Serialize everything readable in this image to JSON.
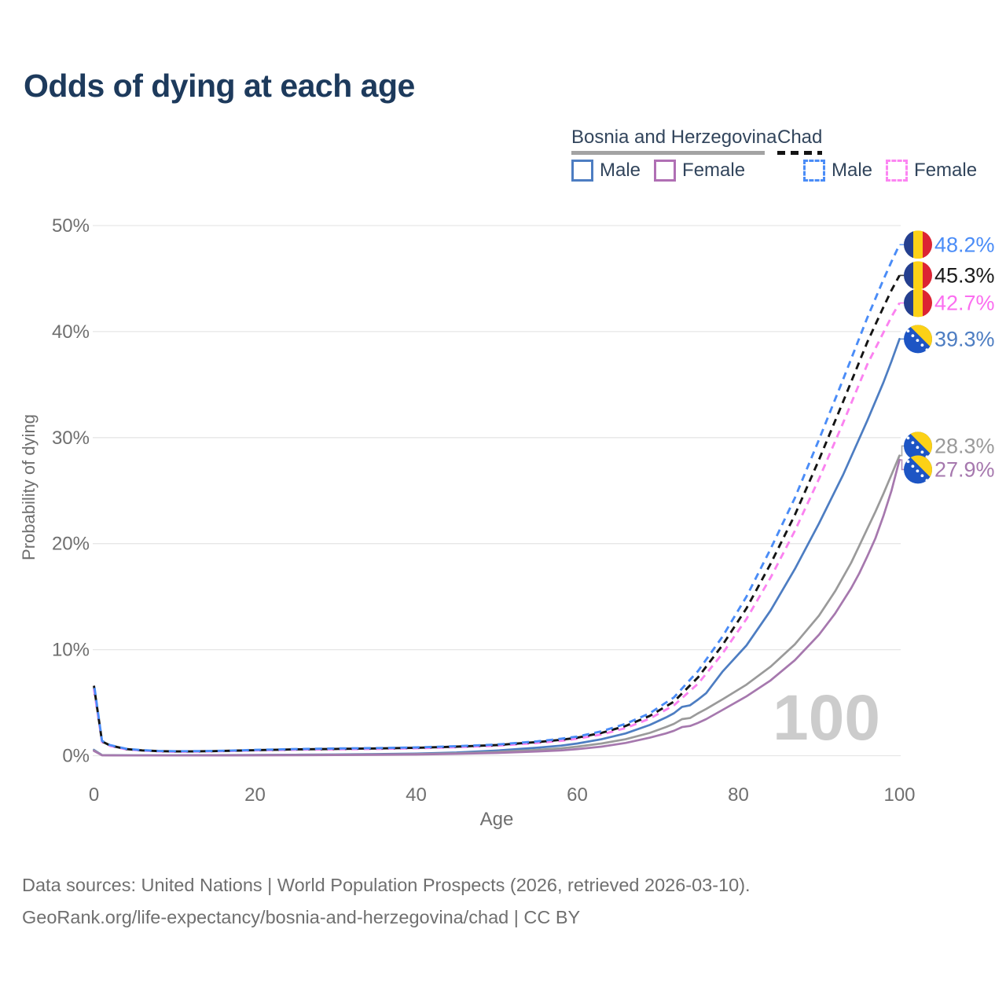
{
  "footer": {
    "line1": "Data sources: United Nations | World Population Prospects (2026, retrieved 2026-03-10).",
    "line2": "GeoRank.org/life-expectancy/bosnia-and-herzegovina/chad | CC BY"
  },
  "legend": {
    "groups": [
      {
        "id": "bosnia-and-herzegovina",
        "label": "Bosnia and Herzegovina",
        "line_style": "solid",
        "line_color": "#a3a3a3",
        "items": [
          {
            "label": "Male",
            "color": "#4d7dc2",
            "dashed": false
          },
          {
            "label": "Female",
            "color": "#b06fb4",
            "dashed": false
          }
        ]
      },
      {
        "id": "chad",
        "label": "Chad",
        "line_style": "dashed",
        "line_color": "#141414",
        "items": [
          {
            "label": "Male",
            "color": "#4a8cf7",
            "dashed": true
          },
          {
            "label": "Female",
            "color": "#fc85f2",
            "dashed": true
          }
        ]
      }
    ]
  },
  "chart_data": {
    "type": "line",
    "title": "Odds of dying at each age",
    "xlabel": "Age",
    "ylabel": "Probability of dying",
    "xlim": [
      0,
      100
    ],
    "ylim_percent": [
      0,
      50
    ],
    "x_ticks": [
      0,
      20,
      40,
      60,
      80,
      100
    ],
    "y_ticks": [
      {
        "value": 0,
        "label": "0%"
      },
      {
        "value": 10,
        "label": "10%"
      },
      {
        "value": 20,
        "label": "20%"
      },
      {
        "value": 30,
        "label": "30%"
      },
      {
        "value": 40,
        "label": "40%"
      },
      {
        "value": 50,
        "label": "50%"
      }
    ],
    "grid": "horizontal",
    "watermark": "100",
    "legend_position": "top-right",
    "series": [
      {
        "id": "bosnia-male",
        "name": "Bosnia and Herzegovina Male",
        "color": "#4d7dc2",
        "dashed": false,
        "flag": "bosnia-and-herzegovina",
        "end_label": "39.3%",
        "end_label_color": "#4d7dc2",
        "end_value_percent": 39.3,
        "points": [
          [
            0,
            0.55
          ],
          [
            1,
            0.06
          ],
          [
            3,
            0.04
          ],
          [
            5,
            0.03
          ],
          [
            10,
            0.03
          ],
          [
            15,
            0.05
          ],
          [
            20,
            0.07
          ],
          [
            25,
            0.09
          ],
          [
            30,
            0.11
          ],
          [
            35,
            0.15
          ],
          [
            40,
            0.2
          ],
          [
            45,
            0.3
          ],
          [
            50,
            0.48
          ],
          [
            55,
            0.75
          ],
          [
            58,
            0.95
          ],
          [
            60,
            1.15
          ],
          [
            63,
            1.55
          ],
          [
            66,
            2.1
          ],
          [
            69,
            2.9
          ],
          [
            71,
            3.6
          ],
          [
            72,
            4.0
          ],
          [
            73,
            4.6
          ],
          [
            74,
            4.75
          ],
          [
            75,
            5.3
          ],
          [
            76,
            5.9
          ],
          [
            78,
            7.9
          ],
          [
            81,
            10.4
          ],
          [
            84,
            13.7
          ],
          [
            87,
            17.6
          ],
          [
            90,
            21.9
          ],
          [
            93,
            26.5
          ],
          [
            96,
            31.6
          ],
          [
            98,
            35.2
          ],
          [
            99,
            37.2
          ],
          [
            100,
            39.3
          ]
        ]
      },
      {
        "id": "bosnia-all",
        "name": "Bosnia and Herzegovina Both sexes",
        "color": "#9a9a9a",
        "dashed": false,
        "flag": "bosnia-and-herzegovina",
        "end_label": "28.3%",
        "end_label_color": "#9a9a9a",
        "end_value_percent": 28.3,
        "points": [
          [
            0,
            0.5
          ],
          [
            1,
            0.05
          ],
          [
            3,
            0.03
          ],
          [
            5,
            0.025
          ],
          [
            10,
            0.025
          ],
          [
            15,
            0.04
          ],
          [
            20,
            0.05
          ],
          [
            25,
            0.07
          ],
          [
            30,
            0.08
          ],
          [
            35,
            0.11
          ],
          [
            40,
            0.15
          ],
          [
            45,
            0.22
          ],
          [
            50,
            0.35
          ],
          [
            55,
            0.55
          ],
          [
            58,
            0.7
          ],
          [
            60,
            0.85
          ],
          [
            63,
            1.15
          ],
          [
            66,
            1.55
          ],
          [
            69,
            2.15
          ],
          [
            71,
            2.7
          ],
          [
            72,
            3.0
          ],
          [
            73,
            3.45
          ],
          [
            74,
            3.55
          ],
          [
            75,
            4.0
          ],
          [
            76,
            4.4
          ],
          [
            78,
            5.3
          ],
          [
            81,
            6.7
          ],
          [
            84,
            8.4
          ],
          [
            87,
            10.5
          ],
          [
            90,
            13.2
          ],
          [
            92,
            15.5
          ],
          [
            94,
            18.2
          ],
          [
            95,
            19.8
          ],
          [
            96,
            21.4
          ],
          [
            97,
            23.0
          ],
          [
            98,
            24.7
          ],
          [
            99,
            26.5
          ],
          [
            100,
            28.3
          ]
        ]
      },
      {
        "id": "bosnia-female",
        "name": "Bosnia and Herzegovina Female",
        "color": "#a678ae",
        "dashed": false,
        "flag": "bosnia-and-herzegovina",
        "end_label": "27.9%",
        "end_label_color": "#a678ae",
        "end_value_percent": 27.9,
        "points": [
          [
            0,
            0.45
          ],
          [
            1,
            0.04
          ],
          [
            3,
            0.025
          ],
          [
            5,
            0.02
          ],
          [
            10,
            0.02
          ],
          [
            15,
            0.03
          ],
          [
            20,
            0.035
          ],
          [
            25,
            0.045
          ],
          [
            30,
            0.06
          ],
          [
            35,
            0.08
          ],
          [
            40,
            0.11
          ],
          [
            45,
            0.17
          ],
          [
            50,
            0.26
          ],
          [
            55,
            0.4
          ],
          [
            58,
            0.5
          ],
          [
            60,
            0.62
          ],
          [
            63,
            0.85
          ],
          [
            66,
            1.2
          ],
          [
            69,
            1.7
          ],
          [
            71,
            2.1
          ],
          [
            72,
            2.35
          ],
          [
            73,
            2.7
          ],
          [
            74,
            2.8
          ],
          [
            75,
            3.1
          ],
          [
            76,
            3.45
          ],
          [
            78,
            4.3
          ],
          [
            81,
            5.6
          ],
          [
            84,
            7.1
          ],
          [
            87,
            9.0
          ],
          [
            90,
            11.4
          ],
          [
            92,
            13.4
          ],
          [
            94,
            15.8
          ],
          [
            95,
            17.2
          ],
          [
            96,
            18.8
          ],
          [
            97,
            20.5
          ],
          [
            98,
            22.6
          ],
          [
            99,
            25.0
          ],
          [
            100,
            27.9
          ]
        ]
      },
      {
        "id": "chad-female",
        "name": "Chad Female",
        "color": "#fb82f0",
        "dashed": true,
        "dash_offset": 0,
        "flag": "chad",
        "end_label": "42.7%",
        "end_label_color": "#fb6ef0",
        "end_value_percent": 42.7,
        "points": [
          [
            0,
            6.3
          ],
          [
            1,
            1.3
          ],
          [
            2,
            0.92
          ],
          [
            4,
            0.6
          ],
          [
            6,
            0.48
          ],
          [
            8,
            0.41
          ],
          [
            10,
            0.38
          ],
          [
            12,
            0.38
          ],
          [
            15,
            0.41
          ],
          [
            18,
            0.46
          ],
          [
            20,
            0.5
          ],
          [
            25,
            0.56
          ],
          [
            30,
            0.6
          ],
          [
            35,
            0.64
          ],
          [
            40,
            0.7
          ],
          [
            45,
            0.8
          ],
          [
            50,
            0.94
          ],
          [
            55,
            1.2
          ],
          [
            58,
            1.4
          ],
          [
            60,
            1.6
          ],
          [
            63,
            2.0
          ],
          [
            66,
            2.6
          ],
          [
            69,
            3.5
          ],
          [
            72,
            4.75
          ],
          [
            75,
            6.8
          ],
          [
            78,
            9.6
          ],
          [
            81,
            12.9
          ],
          [
            84,
            16.8
          ],
          [
            87,
            21.2
          ],
          [
            90,
            26.1
          ],
          [
            93,
            31.4
          ],
          [
            96,
            36.9
          ],
          [
            98,
            39.9
          ],
          [
            99,
            41.4
          ],
          [
            100,
            42.7
          ]
        ]
      },
      {
        "id": "chad-all",
        "name": "Chad Both sexes",
        "color": "#141414",
        "dashed": true,
        "dash_offset": 5,
        "flag": "chad",
        "end_label": "45.3%",
        "end_label_color": "#1a1a1a",
        "end_value_percent": 45.3,
        "points": [
          [
            0,
            6.6
          ],
          [
            1,
            1.35
          ],
          [
            2,
            0.96
          ],
          [
            4,
            0.62
          ],
          [
            6,
            0.5
          ],
          [
            8,
            0.43
          ],
          [
            10,
            0.4
          ],
          [
            12,
            0.4
          ],
          [
            15,
            0.43
          ],
          [
            18,
            0.48
          ],
          [
            20,
            0.52
          ],
          [
            25,
            0.59
          ],
          [
            30,
            0.64
          ],
          [
            35,
            0.68
          ],
          [
            40,
            0.74
          ],
          [
            45,
            0.85
          ],
          [
            50,
            1.0
          ],
          [
            55,
            1.28
          ],
          [
            58,
            1.5
          ],
          [
            60,
            1.7
          ],
          [
            63,
            2.15
          ],
          [
            66,
            2.8
          ],
          [
            69,
            3.75
          ],
          [
            72,
            5.1
          ],
          [
            75,
            7.4
          ],
          [
            78,
            10.4
          ],
          [
            81,
            13.9
          ],
          [
            84,
            18.1
          ],
          [
            87,
            22.7
          ],
          [
            90,
            27.9
          ],
          [
            93,
            33.4
          ],
          [
            96,
            39.0
          ],
          [
            98,
            42.3
          ],
          [
            99,
            43.9
          ],
          [
            100,
            45.3
          ]
        ]
      },
      {
        "id": "chad-male",
        "name": "Chad Male",
        "color": "#4a8cf7",
        "dashed": true,
        "dash_offset": 10,
        "flag": "chad",
        "end_label": "48.2%",
        "end_label_color": "#4a8cf7",
        "end_value_percent": 48.2,
        "points": [
          [
            0,
            6.8
          ],
          [
            1,
            1.4
          ],
          [
            2,
            1.0
          ],
          [
            4,
            0.65
          ],
          [
            6,
            0.52
          ],
          [
            8,
            0.45
          ],
          [
            10,
            0.42
          ],
          [
            12,
            0.42
          ],
          [
            15,
            0.45
          ],
          [
            18,
            0.5
          ],
          [
            20,
            0.55
          ],
          [
            25,
            0.62
          ],
          [
            30,
            0.68
          ],
          [
            35,
            0.72
          ],
          [
            40,
            0.78
          ],
          [
            45,
            0.9
          ],
          [
            50,
            1.05
          ],
          [
            55,
            1.35
          ],
          [
            58,
            1.6
          ],
          [
            60,
            1.8
          ],
          [
            63,
            2.3
          ],
          [
            66,
            3.0
          ],
          [
            69,
            4.0
          ],
          [
            72,
            5.5
          ],
          [
            75,
            8.0
          ],
          [
            78,
            11.2
          ],
          [
            81,
            15.0
          ],
          [
            84,
            19.5
          ],
          [
            87,
            24.3
          ],
          [
            90,
            29.8
          ],
          [
            93,
            35.5
          ],
          [
            96,
            41.3
          ],
          [
            98,
            44.9
          ],
          [
            99,
            46.6
          ],
          [
            100,
            48.2
          ]
        ]
      }
    ],
    "flag_colors": {
      "chad": {
        "blue": "#243f8f",
        "yellow": "#fcd116",
        "red": "#dc2433"
      },
      "bosnia-and-herzegovina": {
        "blue": "#1d55c4",
        "yellow": "#fcd116",
        "star": "#ffffff"
      }
    }
  }
}
